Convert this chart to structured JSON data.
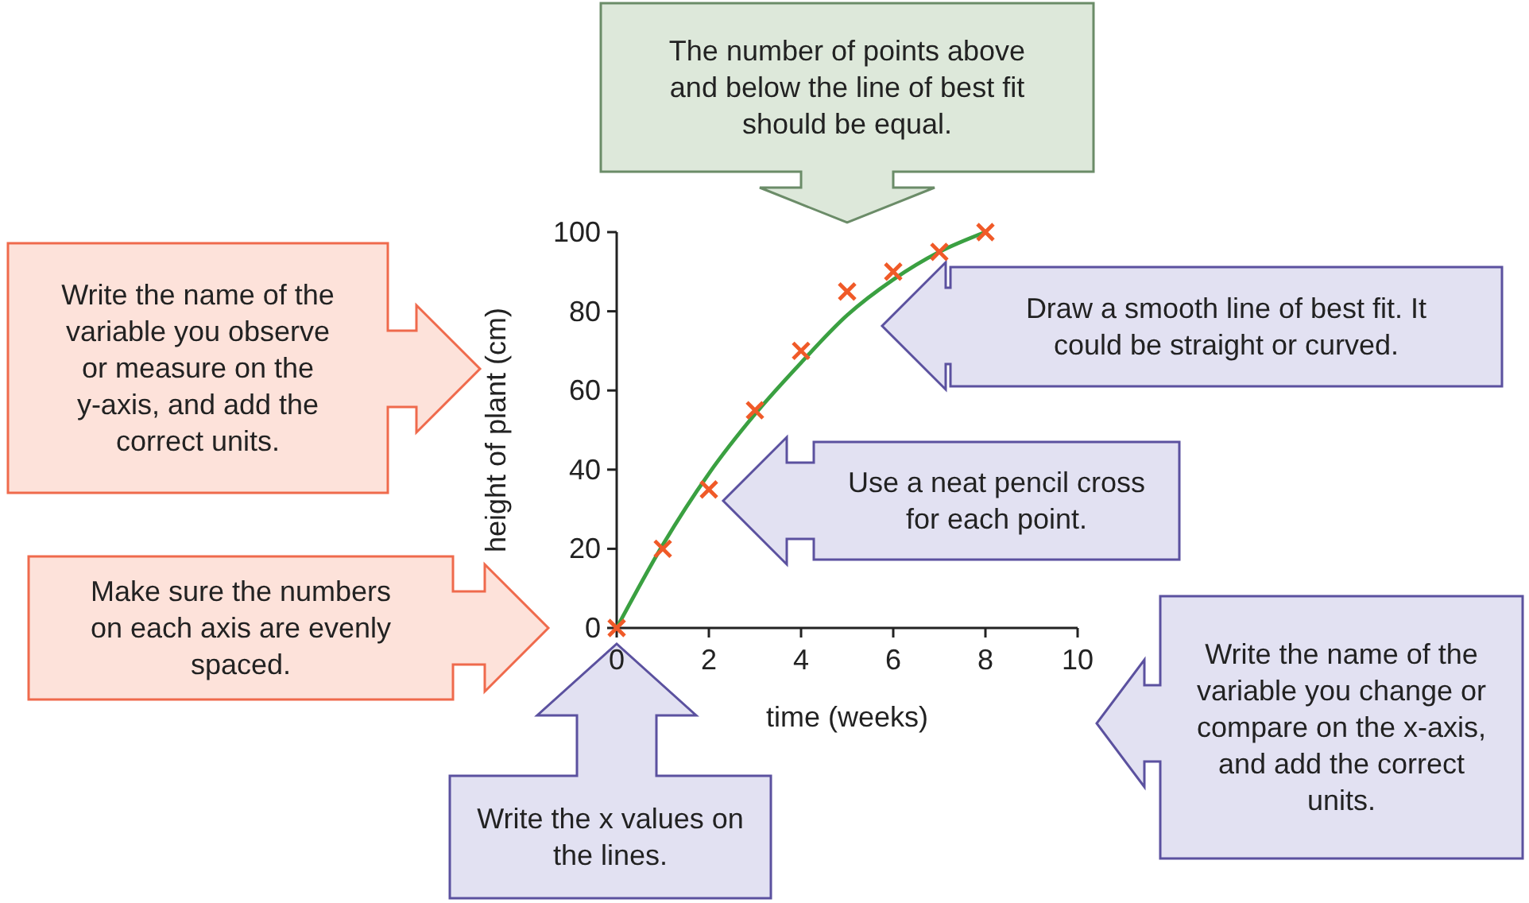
{
  "chart_data": {
    "type": "scatter",
    "xlabel": "time (weeks)",
    "ylabel": "height of plant (cm)",
    "xlim": [
      0,
      10
    ],
    "ylim": [
      0,
      100
    ],
    "xticks": [
      0,
      2,
      4,
      6,
      8,
      10
    ],
    "yticks": [
      0,
      20,
      40,
      60,
      80,
      100
    ],
    "series": [
      {
        "type": "line",
        "color": "#3aa041",
        "marker": "none",
        "x": [
          0,
          1,
          2,
          3,
          4,
          5,
          6,
          7,
          8
        ],
        "values": [
          0,
          21,
          39,
          54,
          67,
          79,
          88,
          95,
          100
        ]
      },
      {
        "type": "scatter",
        "color": "#f05a28",
        "marker": "cross",
        "x": [
          0,
          1,
          2,
          3,
          4,
          5,
          6,
          7,
          8
        ],
        "values": [
          0,
          20,
          35,
          55,
          70,
          85,
          90,
          95,
          100
        ]
      }
    ],
    "annotations": [
      "The number of points above and below the line of best fit should be equal.",
      "Draw a smooth line of best fit. It could be straight or curved.",
      "Use a neat pencil cross for each point.",
      "Write the name of the variable you observe or measure on the y-axis, and add the correct units.",
      "Make sure the numbers on each axis are evenly spaced.",
      "Write the x values on the lines.",
      "Write the name of the variable you change or compare on the x-axis, and add the correct units."
    ]
  }
}
